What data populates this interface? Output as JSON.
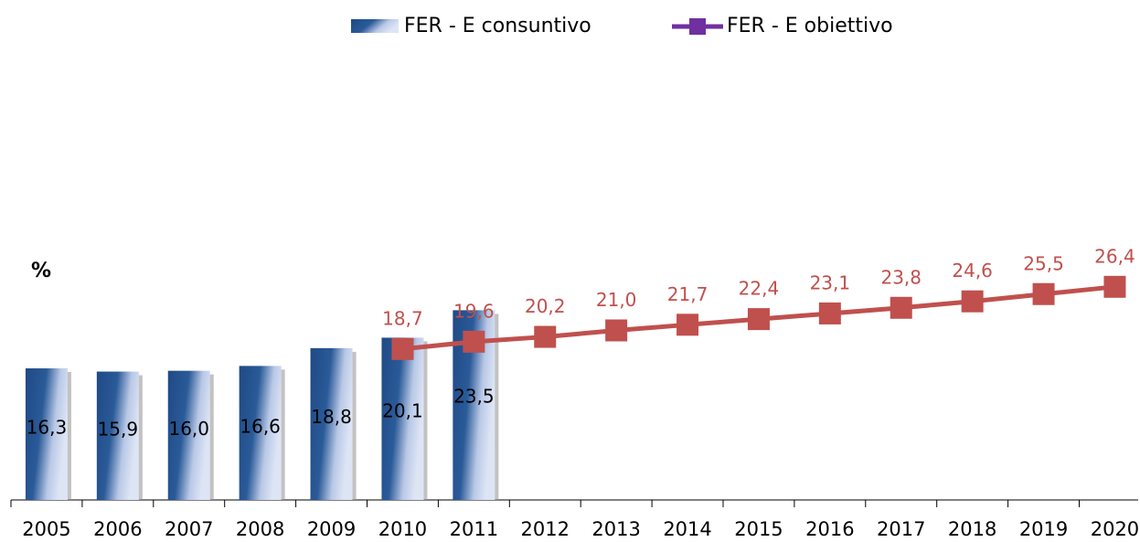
{
  "chart_data": {
    "type": "bar_line",
    "y_label": "%",
    "categories": [
      "2005",
      "2006",
      "2007",
      "2008",
      "2009",
      "2010",
      "2011",
      "2012",
      "2013",
      "2014",
      "2015",
      "2016",
      "2017",
      "2018",
      "2019",
      "2020"
    ],
    "series": [
      {
        "name": "FER - E consuntivo",
        "type": "bar",
        "color": "#1f4a86",
        "values": [
          16.3,
          15.9,
          16.0,
          16.6,
          18.8,
          20.1,
          23.5,
          null,
          null,
          null,
          null,
          null,
          null,
          null,
          null,
          null
        ],
        "value_labels": [
          "16,3",
          "15,9",
          "16,0",
          "16,6",
          "18,8",
          "20,1",
          "23,5",
          null,
          null,
          null,
          null,
          null,
          null,
          null,
          null,
          null
        ]
      },
      {
        "name": "FER - E obiettivo",
        "type": "line",
        "color": "#c0504d",
        "legend_color": "#7030a0",
        "values": [
          null,
          null,
          null,
          null,
          null,
          18.7,
          19.6,
          20.2,
          21.0,
          21.7,
          22.4,
          23.1,
          23.8,
          24.6,
          25.5,
          26.4
        ],
        "value_labels": [
          null,
          null,
          null,
          null,
          null,
          "18,7",
          "19,6",
          "20,2",
          "21,0",
          "21,7",
          "22,4",
          "23,1",
          "23,8",
          "24,6",
          "25,5",
          "26,4"
        ]
      }
    ],
    "ylim": [
      0,
      60
    ],
    "grid": false,
    "legend": "top"
  }
}
